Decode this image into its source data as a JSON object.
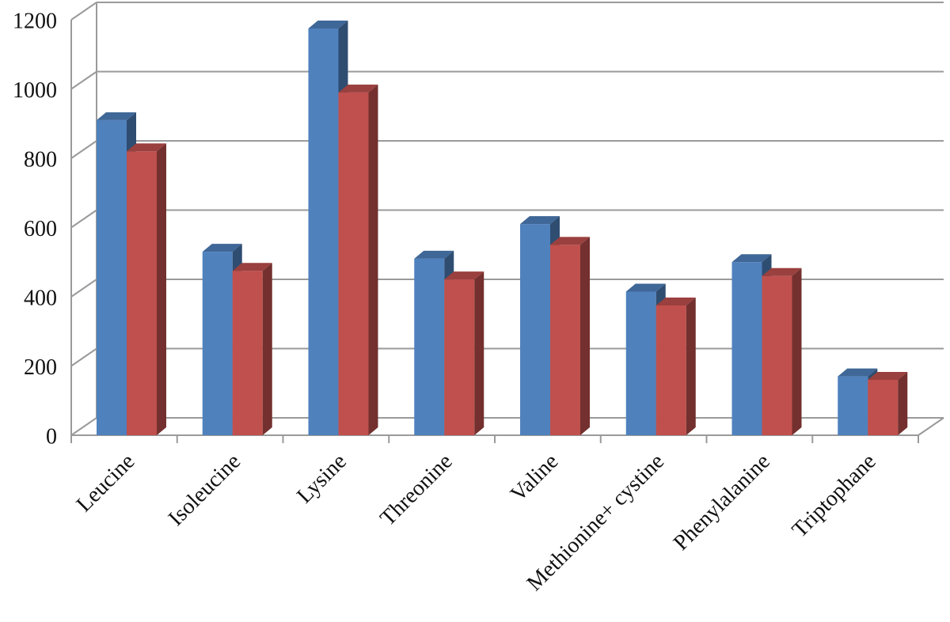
{
  "chart_data": {
    "type": "bar3d",
    "categories": [
      "Leucine",
      "Isoleucine",
      "Lysine",
      "Threonine",
      "Valine",
      "Methionine+ cystine",
      "Phenylalanine",
      "Triptophane"
    ],
    "series": [
      {
        "color": "#4f81bd",
        "values": [
          910,
          530,
          1175,
          510,
          610,
          415,
          500,
          170
        ]
      },
      {
        "color": "#c0504d",
        "values": [
          820,
          475,
          990,
          450,
          550,
          375,
          460,
          160
        ]
      }
    ],
    "ylim": [
      0,
      1200
    ],
    "yticks": [
      0,
      200,
      400,
      600,
      800,
      1000,
      1200
    ],
    "grid": true
  }
}
